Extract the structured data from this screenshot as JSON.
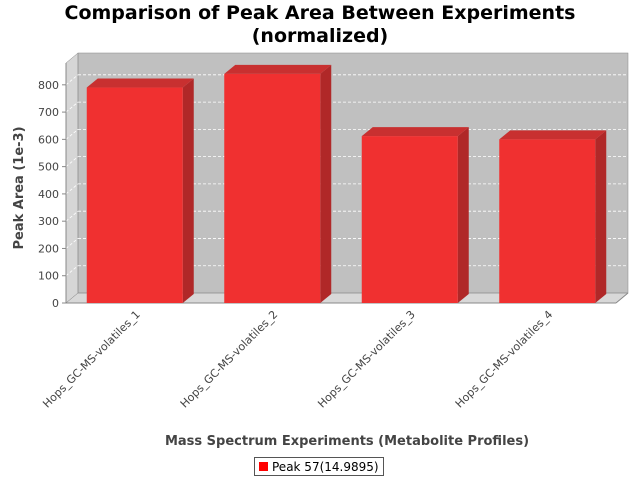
{
  "chart_data": {
    "type": "bar",
    "title_lines": [
      "Comparison of Peak Area Between Experiments",
      "(normalized)"
    ],
    "xlabel": "Mass Spectrum Experiments (Metabolite Profiles)",
    "ylabel": "Peak Area (1e-3)",
    "categories": [
      "Hops_GC-MS-volatiles_1",
      "Hops_GC-MS-volatiles_2",
      "Hops_GC-MS-volatiles_3",
      "Hops_GC-MS-volatiles_4"
    ],
    "series": [
      {
        "name": "Peak 57(14.9895)",
        "values": [
          790,
          840,
          612,
          600
        ]
      }
    ],
    "yticks": [
      0,
      100,
      200,
      300,
      400,
      500,
      600,
      700,
      800
    ],
    "ylim": [
      0,
      880
    ],
    "grid": true,
    "legend_position": "bottom",
    "colors": {
      "bar_front": "#f03030",
      "bar_side": "#b02828",
      "bar_top": "#c83030",
      "plot_back": "#c0c0c0",
      "plot_side": "#d6d6d6",
      "plot_floor": "#d8d8d8",
      "gridline": "#ffffff",
      "legend_swatch": "#ff0000"
    }
  }
}
